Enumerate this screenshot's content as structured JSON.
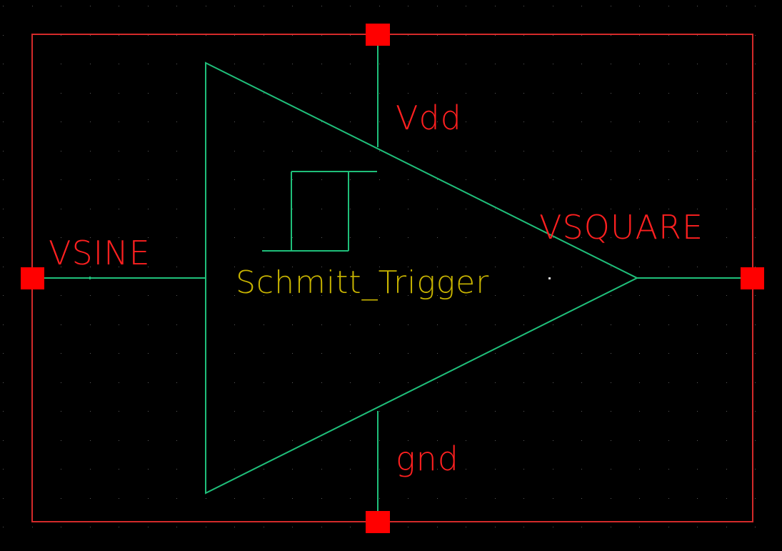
{
  "schematic": {
    "instance_name": "Schmitt_Trigger",
    "pins": {
      "input": "VSINE",
      "output": "VSQUARE",
      "supply": "Vdd",
      "ground": "gnd"
    }
  },
  "colors": {
    "background": "#000000",
    "grid_dots": "#5a5a5a",
    "boundary": "#d42a2a",
    "pin_square": "#ff0000",
    "wire": "#1fbf7a",
    "pin_text": "#ff2020",
    "instance_text": "#c8b400"
  },
  "icons": {
    "pin_marker": "red-square-pin",
    "symbol": "buffer-triangle",
    "hysteresis": "hysteresis-loop"
  }
}
